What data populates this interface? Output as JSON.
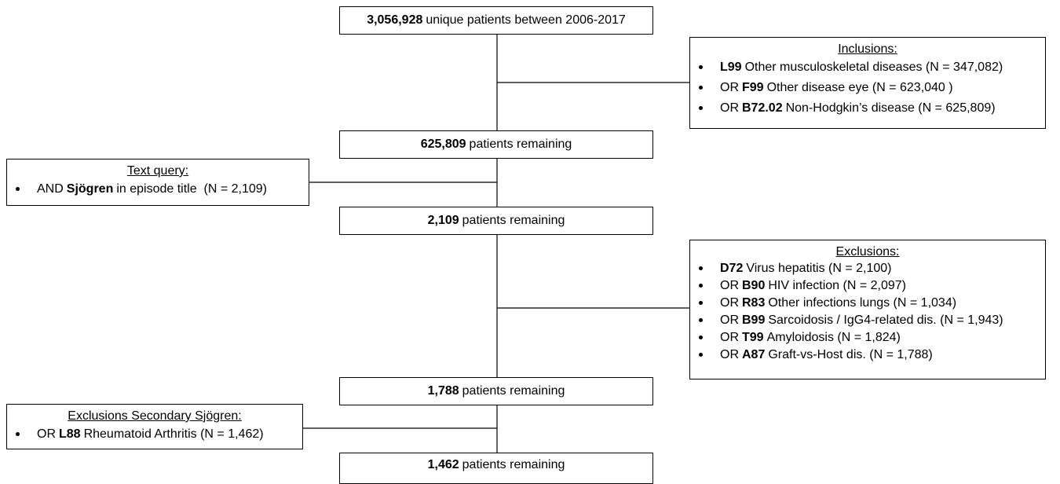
{
  "main_boxes": [
    {
      "number": "3,056,928",
      "text": "unique patients between 2006-2017"
    },
    {
      "number": "625,809",
      "text": "patients remaining"
    },
    {
      "number": "2,109",
      "text": "patients remaining"
    },
    {
      "number": "1,788",
      "text": "patients remaining"
    },
    {
      "number": "1,462",
      "text": "patients remaining"
    }
  ],
  "side_boxes": [
    {
      "title": "Inclusions:",
      "items": [
        {
          "code": "L99",
          "text": "Other musculoskeletal diseases (N = 347,082)"
        },
        {
          "prefix": "OR",
          "code": "F99",
          "text": "Other disease eye (N = 623,040 )"
        },
        {
          "prefix": "OR",
          "code": "B72.02",
          "text": "Non-Hodgkin’s disease (N = 625,809)"
        }
      ]
    },
    {
      "title": "Text query:",
      "items": [
        {
          "prefix": "AND",
          "code": "Sjögren",
          "text": "in episode title  (N = 2,109)"
        }
      ]
    },
    {
      "title": "Exclusions:",
      "items": [
        {
          "code": "D72",
          "text": "Virus hepatitis (N = 2,100)"
        },
        {
          "prefix": "OR",
          "code": "B90",
          "text": "HIV infection (N = 2,097)"
        },
        {
          "prefix": "OR",
          "code": "R83",
          "text": "Other infections lungs (N = 1,034)"
        },
        {
          "prefix": "OR",
          "code": "B99",
          "text": "Sarcoidosis / IgG4-related dis. (N = 1,943)"
        },
        {
          "prefix": "OR",
          "code": "T99",
          "text": "Amyloidosis (N = 1,824)"
        },
        {
          "prefix": "OR",
          "code": "A87",
          "text": "Graft-vs-Host dis. (N = 1,788)"
        }
      ]
    },
    {
      "title": "Exclusions Secondary Sjögren:",
      "items": [
        {
          "prefix": "OR",
          "code": "L88",
          "text": "Rheumatoid Arthritis (N = 1,462)"
        }
      ]
    }
  ]
}
